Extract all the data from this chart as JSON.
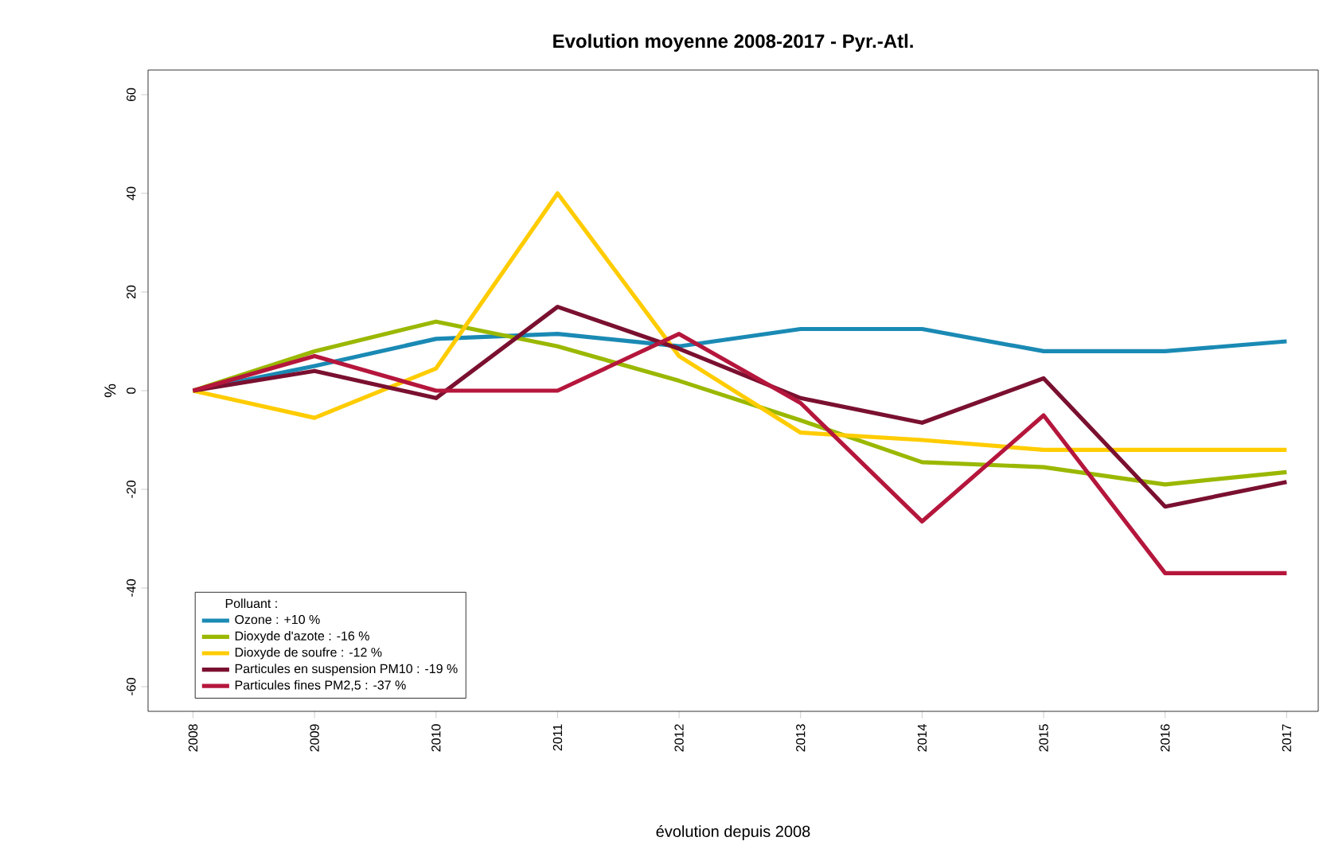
{
  "chart_data": {
    "type": "line",
    "title": "Evolution moyenne 2008-2017 - Pyr.-Atl.",
    "xlabel": "évolution depuis 2008",
    "ylabel": "%",
    "legend_title": "Polluant :",
    "legend": "bottom left",
    "grid": false,
    "categories": [
      "2008",
      "2009",
      "2010",
      "2011",
      "2012",
      "2013",
      "2014",
      "2015",
      "2016",
      "2017"
    ],
    "ylim": [
      -65,
      65
    ],
    "yticks": [
      -60,
      -40,
      -20,
      0,
      20,
      40,
      60
    ],
    "series": [
      {
        "name": "Ozone : +10 %",
        "color": "#1a8ab4",
        "values": [
          0,
          5,
          10.5,
          11.5,
          9,
          12.5,
          12.5,
          8,
          8,
          10
        ]
      },
      {
        "name": "Dioxyde d'azote : -16 %",
        "color": "#9ab800",
        "values": [
          0,
          8,
          14,
          9,
          2,
          -6,
          -14.5,
          -15.5,
          -19,
          -16.5
        ]
      },
      {
        "name": "Dioxyde de soufre : -12 %",
        "color": "#ffcc00",
        "values": [
          0,
          -5.5,
          4.5,
          40,
          7,
          -8.5,
          -10,
          -12,
          -12,
          -12
        ]
      },
      {
        "name": "Particules en suspension PM10 : -19 %",
        "color": "#7a1030",
        "values": [
          0,
          4,
          -1.5,
          17,
          8.5,
          -1.5,
          -6.5,
          2.5,
          -23.5,
          -18.5
        ]
      },
      {
        "name": "Particules fines PM2,5 : -37 %",
        "color": "#b5163c",
        "values": [
          0,
          7,
          0,
          0,
          11.5,
          -2.5,
          -26.5,
          -5,
          -37,
          -37
        ]
      }
    ]
  }
}
